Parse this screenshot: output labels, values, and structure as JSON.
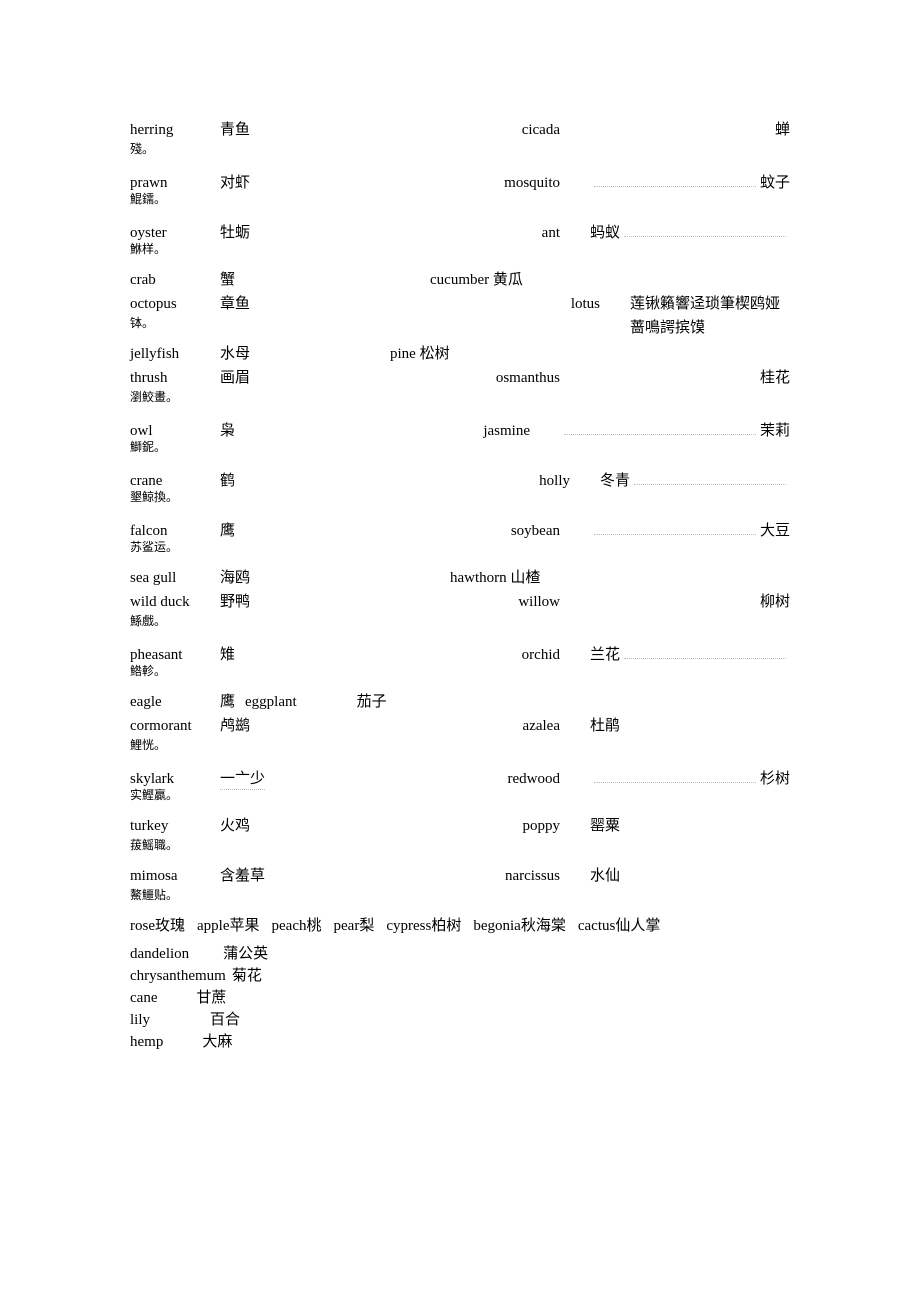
{
  "colors": {
    "text": "#000000",
    "background": "#ffffff",
    "dotted_underline": "#bdbdbd"
  },
  "typography": {
    "body_font": "Times New Roman / SimSun",
    "body_size_pt": 11,
    "sub_size_pt": 9
  },
  "rows": [
    {
      "l_en": "herring",
      "l_cn": "青鱼",
      "r_en": "cicada",
      "r_mid": "",
      "r_cn_far": "蝉",
      "sub": "殘。"
    },
    {
      "l_en": "prawn",
      "l_cn": "对虾",
      "r_en": "mosquito",
      "r_mid": "",
      "r_cn_far": "蚊子",
      "sub": "鯤鑐。",
      "r_dots_before": true
    },
    {
      "l_en": "oyster",
      "l_cn": "牡蛎",
      "r_en": "ant",
      "r_mid": "蚂蚁",
      "r_cn_far": "",
      "sub": "鮴样。",
      "r_dots_after_mid": true
    },
    {
      "l_en": "crab",
      "l_cn": "蟹",
      "r_en": "cucumber",
      "r_inline_cn": "黄瓜"
    },
    {
      "l_en": "octopus",
      "l_cn": "章鱼",
      "r_en": "lotus",
      "r_mid": "",
      "r_cn_far": "莲锹籟響迳琐筆楔鸥娅蔷鳴諤摈馍",
      "sub": "钵。",
      "r_en_indent": 40
    },
    {
      "l_en": "jellyfish",
      "l_cn": "水母",
      "r_en": "pine",
      "r_inline_cn": "松树",
      "r_en_left_shift": -40
    },
    {
      "l_en": "thrush",
      "l_cn": "画眉",
      "r_en": "osmanthus",
      "r_mid": "",
      "r_cn_far": "桂花",
      "sub": "瀏鮫畫。"
    },
    {
      "l_en": "owl",
      "l_cn": "枭",
      "r_en": "jasmine",
      "r_mid": "",
      "r_cn_far": "茉莉",
      "sub": "鰤鈮。",
      "r_dots_before": true,
      "r_en_left_shift": -30
    },
    {
      "l_en": "crane",
      "l_cn": "鹤",
      "r_en": "holly",
      "r_mid": "冬青",
      "r_cn_far": "",
      "sub": "墾鯨換。",
      "r_dots_after_mid": true,
      "r_en_indent": 10
    },
    {
      "l_en": "falcon",
      "l_cn": "鹰",
      "r_en": "soybean",
      "r_mid": "",
      "r_cn_far": "大豆",
      "sub": "苏鲨运。",
      "r_dots_before": true
    },
    {
      "l_en": "sea gull",
      "l_cn": "海鸥",
      "r_en": "hawthorn",
      "r_inline_cn": "山楂",
      "r_en_indent": 20
    },
    {
      "l_en": "wild duck",
      "l_cn": "野鸭",
      "r_en": "willow",
      "r_mid": "",
      "r_cn_far": "柳树",
      "sub": "鯀戲。"
    },
    {
      "l_en": "pheasant",
      "l_cn": "雉",
      "r_en": "orchid",
      "r_mid": "兰花",
      "r_cn_far": "",
      "sub": "鯦軫。",
      "r_dots_after_mid": true
    },
    {
      "l_en": "eagle",
      "l_cn": "鹰",
      "l_en2": "eggplant",
      "l_cn2": "茄子"
    },
    {
      "l_en": "cormorant",
      "l_cn": "鸬鹚",
      "r_en": "azalea",
      "r_mid": "杜鹃",
      "r_cn_far": "",
      "sub": "鯉恍。"
    },
    {
      "l_en": "skylark",
      "l_cn": "一亠少",
      "r_en": "redwood",
      "r_mid": "",
      "r_cn_far": "杉树",
      "sub": "实鰹贏。",
      "r_dots_before": true,
      "l_cn_dots_under": true
    },
    {
      "l_en": "turkey",
      "l_cn": "火鸡",
      "r_en": "poppy",
      "r_mid": "罂粟",
      "r_cn_far": "",
      "sub": "菝鰩職。"
    },
    {
      "l_en": "mimosa",
      "l_cn": "含羞草",
      "r_en": "narcissus",
      "r_mid": "水仙",
      "r_cn_far": "",
      "sub": "鰲鱷贴。"
    }
  ],
  "single_line": {
    "items": [
      {
        "en": "rose",
        "cn": "玫瑰"
      },
      {
        "en": "apple",
        "cn": "苹果"
      },
      {
        "en": "peach",
        "cn": "桃"
      },
      {
        "en": "pear",
        "cn": "梨"
      },
      {
        "en": "cypress",
        "cn": "柏树"
      },
      {
        "en": "begonia",
        "cn": "秋海棠"
      },
      {
        "en": "cactus",
        "cn": "仙人掌"
      }
    ]
  },
  "bottom": [
    {
      "en": "dandelion",
      "cn": "蒲公英",
      "gap": 34
    },
    {
      "en": "chrysanthemum",
      "cn": "菊花",
      "gap": 6
    },
    {
      "en": "cane",
      "cn": "甘蔗",
      "gap": 39
    },
    {
      "en": "lily",
      "cn": "百合",
      "gap": 60
    },
    {
      "en": "hemp",
      "cn": "大麻",
      "gap": 39
    }
  ]
}
